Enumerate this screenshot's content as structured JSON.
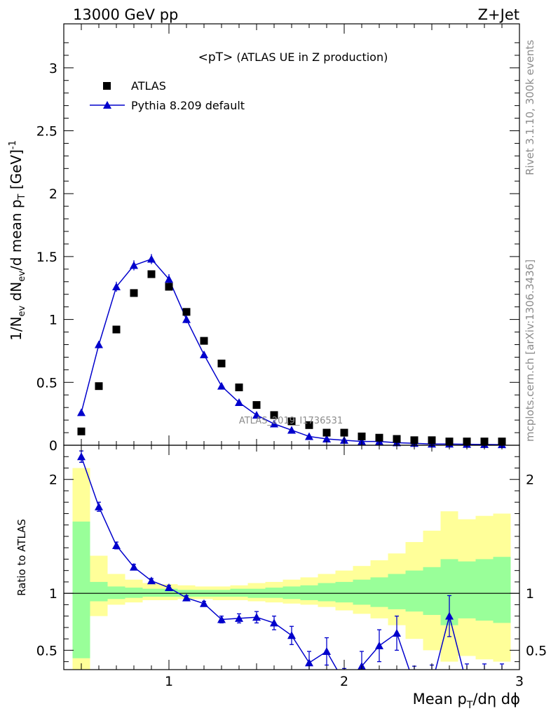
{
  "header": {
    "energy": "13000 GeV pp",
    "process": "Z+Jet"
  },
  "side": {
    "rivet": "Rivet 3.1.10,  300k events",
    "mcplots": "mcplots.cern.ch [arXiv:1306.3436]"
  },
  "watermark": "ATLAS_2019_I1736531",
  "chart_data": {
    "type": "scatter",
    "title_main": "<pT>",
    "title_sub": " (ATLAS UE in Z production)",
    "ylabel_main": "1/N_ev dN_ev/d mean p_T [GeV]^-1",
    "ylabel_ratio": "Ratio to ATLAS",
    "xlabel": "Mean p_T/dη dϕ",
    "xlim": [
      0.4,
      3.0
    ],
    "ylim_main": [
      0,
      3.35
    ],
    "ylim_ratio": [
      0.33,
      2.3
    ],
    "xticks": [
      {
        "v": 1,
        "t": "1"
      },
      {
        "v": 2,
        "t": "2"
      },
      {
        "v": 3,
        "t": "3"
      }
    ],
    "yticks_main": [
      {
        "v": 0,
        "t": "0"
      },
      {
        "v": 0.5,
        "t": "0.5"
      },
      {
        "v": 1,
        "t": "1"
      },
      {
        "v": 1.5,
        "t": "1.5"
      },
      {
        "v": 2,
        "t": "2"
      },
      {
        "v": 2.5,
        "t": "2.5"
      },
      {
        "v": 3,
        "t": "3"
      }
    ],
    "yticks_ratio": [
      {
        "v": 0.5,
        "t": "0.5"
      },
      {
        "v": 1,
        "t": "1"
      },
      {
        "v": 2,
        "t": "2"
      }
    ],
    "legend": {
      "position": "top-left",
      "entries": [
        {
          "label": "ATLAS",
          "marker": "square",
          "color": "#000000"
        },
        {
          "label": "Pythia 8.209 default",
          "marker": "triangle",
          "color": "#0000cc"
        }
      ]
    },
    "x": [
      0.5,
      0.6,
      0.7,
      0.8,
      0.9,
      1.0,
      1.1,
      1.2,
      1.3,
      1.4,
      1.5,
      1.6,
      1.7,
      1.8,
      1.9,
      2.0,
      2.1,
      2.2,
      2.3,
      2.4,
      2.5,
      2.6,
      2.7,
      2.8,
      2.9
    ],
    "atlas": [
      0.11,
      0.47,
      0.92,
      1.21,
      1.36,
      1.26,
      1.06,
      0.83,
      0.65,
      0.46,
      0.32,
      0.24,
      0.19,
      0.16,
      0.1,
      0.1,
      0.07,
      0.06,
      0.05,
      0.04,
      0.04,
      0.03,
      0.03,
      0.03,
      0.03
    ],
    "pythia": [
      0.26,
      0.8,
      1.26,
      1.43,
      1.48,
      1.32,
      1.0,
      0.72,
      0.47,
      0.34,
      0.24,
      0.17,
      0.12,
      0.07,
      0.05,
      0.04,
      0.03,
      0.03,
      0.02,
      0.015,
      0.01,
      0.01,
      0.008,
      0.006,
      0.005
    ],
    "pythia_err": [
      0.02,
      0.03,
      0.04,
      0.04,
      0.04,
      0.04,
      0.03,
      0.02,
      0.015,
      0.01,
      0.01,
      0.008,
      0.006,
      0.005,
      0.004,
      0.004,
      0.003,
      0.003,
      0.002,
      0.002,
      0.002,
      0.002,
      0.002,
      0.002,
      0.002
    ],
    "ratio": [
      2.2,
      1.76,
      1.42,
      1.23,
      1.11,
      1.05,
      0.96,
      0.91,
      0.77,
      0.78,
      0.79,
      0.74,
      0.63,
      0.39,
      0.49,
      0.22,
      0.36,
      0.54,
      0.65,
      0.2,
      0.2,
      0.8,
      0.2,
      0.2,
      0.2
    ],
    "ratio_err": [
      0.05,
      0.04,
      0.03,
      0.025,
      0.02,
      0.02,
      0.02,
      0.02,
      0.03,
      0.04,
      0.05,
      0.06,
      0.08,
      0.1,
      0.12,
      0.12,
      0.13,
      0.14,
      0.15,
      0.16,
      0.17,
      0.18,
      0.18,
      0.18,
      0.18
    ],
    "band_inner": [
      {
        "lo": 0.43,
        "hi": 1.63
      },
      {
        "lo": 0.93,
        "hi": 1.1
      },
      {
        "lo": 0.95,
        "hi": 1.06
      },
      {
        "lo": 0.96,
        "hi": 1.05
      },
      {
        "lo": 0.97,
        "hi": 1.04
      },
      {
        "lo": 0.97,
        "hi": 1.04
      },
      {
        "lo": 0.97,
        "hi": 1.03
      },
      {
        "lo": 0.97,
        "hi": 1.03
      },
      {
        "lo": 0.97,
        "hi": 1.03
      },
      {
        "lo": 0.97,
        "hi": 1.04
      },
      {
        "lo": 0.96,
        "hi": 1.04
      },
      {
        "lo": 0.96,
        "hi": 1.05
      },
      {
        "lo": 0.95,
        "hi": 1.06
      },
      {
        "lo": 0.94,
        "hi": 1.07
      },
      {
        "lo": 0.93,
        "hi": 1.09
      },
      {
        "lo": 0.92,
        "hi": 1.1
      },
      {
        "lo": 0.9,
        "hi": 1.12
      },
      {
        "lo": 0.88,
        "hi": 1.14
      },
      {
        "lo": 0.86,
        "hi": 1.17
      },
      {
        "lo": 0.84,
        "hi": 1.2
      },
      {
        "lo": 0.81,
        "hi": 1.23
      },
      {
        "lo": 0.72,
        "hi": 1.3
      },
      {
        "lo": 0.78,
        "hi": 1.28
      },
      {
        "lo": 0.76,
        "hi": 1.3
      },
      {
        "lo": 0.74,
        "hi": 1.32
      }
    ],
    "band_outer": [
      {
        "lo": 0.0,
        "hi": 2.1
      },
      {
        "lo": 0.8,
        "hi": 1.33
      },
      {
        "lo": 0.9,
        "hi": 1.17
      },
      {
        "lo": 0.92,
        "hi": 1.12
      },
      {
        "lo": 0.94,
        "hi": 1.09
      },
      {
        "lo": 0.94,
        "hi": 1.08
      },
      {
        "lo": 0.95,
        "hi": 1.07
      },
      {
        "lo": 0.95,
        "hi": 1.06
      },
      {
        "lo": 0.94,
        "hi": 1.06
      },
      {
        "lo": 0.94,
        "hi": 1.07
      },
      {
        "lo": 0.93,
        "hi": 1.09
      },
      {
        "lo": 0.92,
        "hi": 1.1
      },
      {
        "lo": 0.91,
        "hi": 1.12
      },
      {
        "lo": 0.9,
        "hi": 1.14
      },
      {
        "lo": 0.88,
        "hi": 1.17
      },
      {
        "lo": 0.85,
        "hi": 1.2
      },
      {
        "lo": 0.82,
        "hi": 1.24
      },
      {
        "lo": 0.78,
        "hi": 1.29
      },
      {
        "lo": 0.72,
        "hi": 1.35
      },
      {
        "lo": 0.6,
        "hi": 1.45
      },
      {
        "lo": 0.5,
        "hi": 1.55
      },
      {
        "lo": 0.4,
        "hi": 1.72
      },
      {
        "lo": 0.45,
        "hi": 1.65
      },
      {
        "lo": 0.42,
        "hi": 1.68
      },
      {
        "lo": 0.4,
        "hi": 1.7
      }
    ],
    "colors": {
      "data": "#000000",
      "mc": "#0000cc",
      "band_inner": "#99ff99",
      "band_outer": "#ffff99"
    }
  }
}
